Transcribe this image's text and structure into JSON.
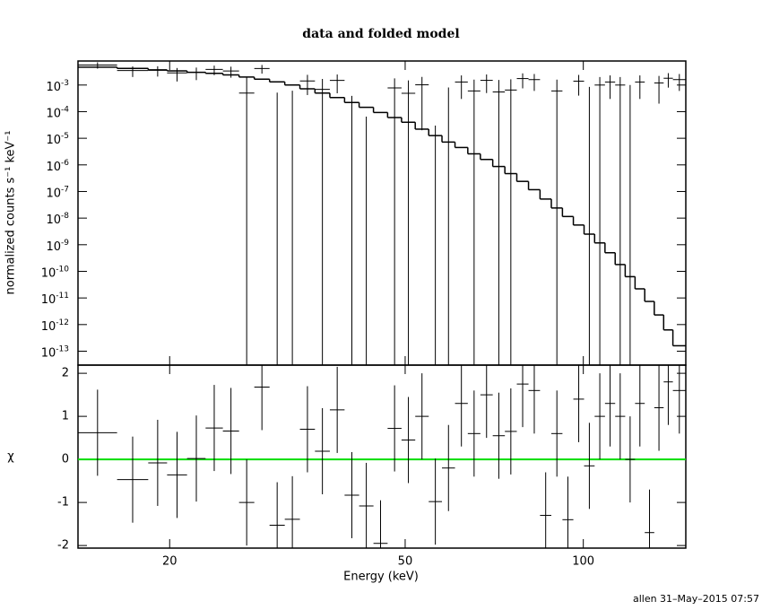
{
  "chart_data": [
    {
      "type": "spectrum",
      "title": "data and folded model",
      "ylabel": "normalized counts s⁻¹ keV⁻¹",
      "xscale": "log",
      "yscale": "log",
      "xlim": [
        14,
        149
      ],
      "ylim": [
        3e-14,
        0.008
      ],
      "xticks": [
        20,
        50,
        100
      ],
      "yticks": [
        {
          "value": 0.001,
          "label": "10",
          "exponent": "-3"
        },
        {
          "value": 0.0001,
          "label": "10",
          "exponent": "-4"
        },
        {
          "value": 1e-05,
          "label": "10",
          "exponent": "-5"
        },
        {
          "value": 1e-06,
          "label": "10",
          "exponent": "-6"
        },
        {
          "value": 1e-07,
          "label": "10",
          "exponent": "-7"
        },
        {
          "value": 1e-08,
          "label": "10",
          "exponent": "-8"
        },
        {
          "value": 1e-09,
          "label": "10",
          "exponent": "-9"
        },
        {
          "value": 1e-10,
          "label": "10",
          "exponent": "-10"
        },
        {
          "value": 1e-11,
          "label": "10",
          "exponent": "-11"
        },
        {
          "value": 1e-12,
          "label": "10",
          "exponent": "-12"
        },
        {
          "value": 1e-13,
          "label": "10",
          "exponent": "-13"
        }
      ],
      "color": "#000000",
      "bins": [
        14,
        16.3,
        18.4,
        19.8,
        21.4,
        23.0,
        24.6,
        26.2,
        27.8,
        29.5,
        31.3,
        33.2,
        35.2,
        37.3,
        39.5,
        41.8,
        44.2,
        46.7,
        49.3,
        52.0,
        54.8,
        57.7,
        60.7,
        63.8,
        67.0,
        70.3,
        73.7,
        77.2,
        80.8,
        84.5,
        88.3,
        92.2,
        96.2,
        100.3,
        104.5,
        108.8,
        113.2,
        117.7,
        122.3,
        127.0,
        131.8,
        136.7,
        141.7,
        149
      ],
      "model": [
        0.0047,
        0.0042,
        0.0037,
        0.0034,
        0.003,
        0.00275,
        0.0024,
        0.002,
        0.00166,
        0.00132,
        0.001,
        0.00072,
        0.0005,
        0.00034,
        0.00022,
        0.000145,
        9.3e-05,
        6e-05,
        4e-05,
        2.2e-05,
        1.26e-05,
        7.2e-06,
        4.5e-06,
        2.6e-06,
        1.6e-06,
        8.7e-07,
        4.7e-07,
        2.4e-07,
        1.17e-07,
        5.2e-08,
        2.4e-08,
        1.15e-08,
        5.5e-09,
        2.5e-09,
        1.17e-09,
        5e-10,
        1.8e-10,
        6.3e-11,
        2.2e-11,
        7.4e-12,
        2.3e-12,
        6.3e-13,
        1.6e-13
      ],
      "data": [
        0.00563,
        0.0035,
        0.00358,
        0.00286,
        0.00303,
        0.00385,
        0.00339,
        0.0005,
        0.00418,
        -0.00098,
        -0.00039,
        0.00142,
        0.00069,
        0.00149,
        -0.00061,
        -0.000935,
        -0.00186,
        0.00078,
        0.00049,
        0.00102,
        -0.00097,
        -0.00019,
        0.0013,
        0.0006,
        0.0015,
        0.00055,
        0.00065,
        0.00175,
        0.0016,
        -0.0013,
        0.0006,
        -0.0014,
        0.0014,
        -0.00015,
        0.001,
        0.0013,
        0.001,
        6.3e-11,
        0.0013,
        -0.0017,
        0.0012,
        0.0018,
        0.0016
      ],
      "data_err": [
        0.0015,
        0.0015,
        0.0015,
        0.0015,
        0.0015,
        0.0015,
        0.0015,
        0.0015,
        0.0015,
        0.0015,
        0.001,
        0.001,
        0.001,
        0.001,
        0.001,
        0.001,
        0.001,
        0.001,
        0.001,
        0.001,
        0.001,
        0.001,
        0.001,
        0.001,
        0.001,
        0.001,
        0.001,
        0.001,
        0.001,
        0.001,
        0.001,
        0.001,
        0.001,
        0.001,
        0.001,
        0.001,
        0.001,
        0.001,
        0.001,
        0.001,
        0.001,
        0.001,
        0.001
      ]
    },
    {
      "type": "residuals",
      "ylabel": "χ",
      "xlabel": "Energy (keV)",
      "xscale": "log",
      "xlim": [
        14,
        149
      ],
      "xticks": [
        20,
        50,
        100
      ],
      "ylim": [
        -2.06,
        2.19
      ],
      "yticks": [
        2,
        1,
        0,
        -1,
        -2
      ],
      "color": "#000000",
      "reference_line": 0,
      "reference_color": "#00dd00",
      "residuals": [
        0.62,
        -0.47,
        -0.08,
        -0.36,
        0.02,
        0.73,
        0.66,
        -1.0,
        1.68,
        -1.53,
        -1.39,
        0.7,
        0.19,
        1.15,
        -0.83,
        -1.08,
        -1.95,
        0.72,
        0.45,
        1.0,
        -0.98,
        -0.2,
        1.3,
        0.6,
        1.5,
        0.55,
        0.65,
        1.75,
        1.6,
        -1.3,
        0.6,
        -1.4,
        1.4,
        -0.15,
        1.0,
        1.3,
        1.0,
        0.0,
        1.3,
        -1.7,
        1.2,
        1.8,
        1.6
      ],
      "residual_err": 1
    }
  ],
  "footer": "allen 31–May–2015 07:57"
}
